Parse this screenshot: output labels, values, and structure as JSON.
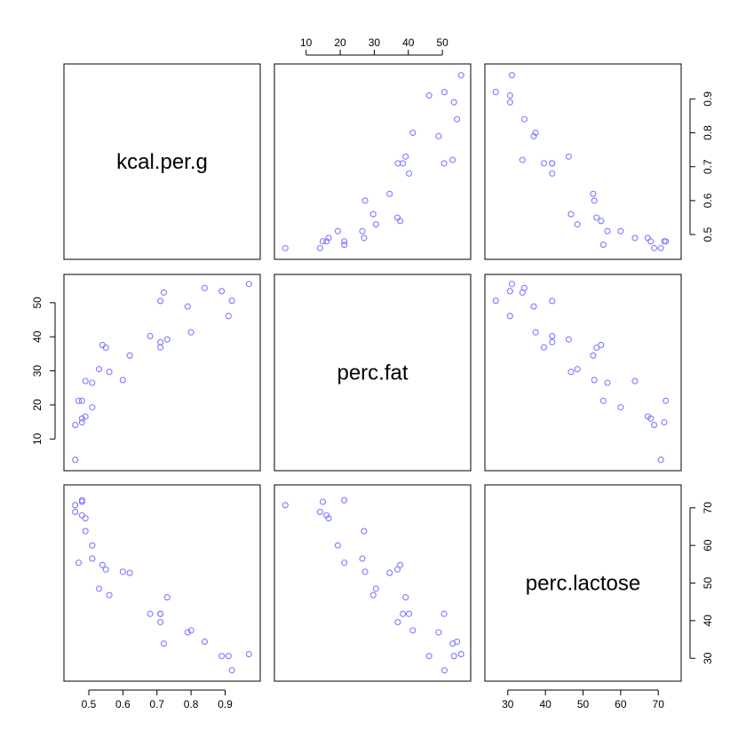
{
  "chart_data": {
    "type": "scatter",
    "kind": "pairs",
    "variables": [
      "kcal.per.g",
      "perc.fat",
      "perc.lactose"
    ],
    "point_color": "#7b7bff",
    "axes": {
      "kcal.per.g": {
        "range": [
          0.45,
          0.98
        ],
        "ticks": [
          0.5,
          0.6,
          0.7,
          0.8,
          0.9
        ]
      },
      "perc.fat": {
        "range": [
          3,
          56
        ],
        "ticks": [
          10,
          20,
          30,
          40,
          50
        ]
      },
      "perc.lactose": {
        "range": [
          26,
          74
        ],
        "ticks": [
          30,
          40,
          50,
          60,
          70
        ]
      }
    },
    "observations": [
      [
        0.49,
        16.6,
        67.2
      ],
      [
        0.51,
        19.3,
        60.0
      ],
      [
        0.46,
        14.1,
        68.9
      ],
      [
        0.48,
        14.9,
        71.6
      ],
      [
        0.6,
        27.3,
        53.0
      ],
      [
        0.47,
        21.2,
        55.4
      ],
      [
        0.56,
        29.7,
        46.8
      ],
      [
        0.89,
        53.4,
        30.6
      ],
      [
        0.91,
        46.1,
        30.6
      ],
      [
        0.92,
        50.6,
        26.8
      ],
      [
        0.8,
        41.3,
        37.4
      ],
      [
        0.46,
        3.9,
        70.7
      ],
      [
        0.71,
        38.4,
        41.8
      ],
      [
        0.71,
        36.9,
        39.6
      ],
      [
        0.73,
        39.2,
        46.2
      ],
      [
        0.68,
        40.2,
        41.8
      ],
      [
        0.62,
        34.5,
        52.7
      ],
      [
        0.97,
        55.5,
        31.1
      ],
      [
        0.84,
        54.3,
        34.4
      ],
      [
        0.72,
        53.0,
        33.9
      ],
      [
        0.53,
        30.5,
        48.5
      ],
      [
        0.55,
        36.8,
        53.6
      ],
      [
        0.79,
        48.9,
        36.9
      ],
      [
        0.51,
        26.5,
        56.5
      ],
      [
        0.48,
        21.2,
        72.0
      ],
      [
        0.49,
        27.0,
        63.8
      ],
      [
        0.54,
        37.6,
        54.8
      ],
      [
        0.48,
        16.0,
        68.0
      ],
      [
        0.71,
        50.5,
        41.8
      ]
    ]
  }
}
